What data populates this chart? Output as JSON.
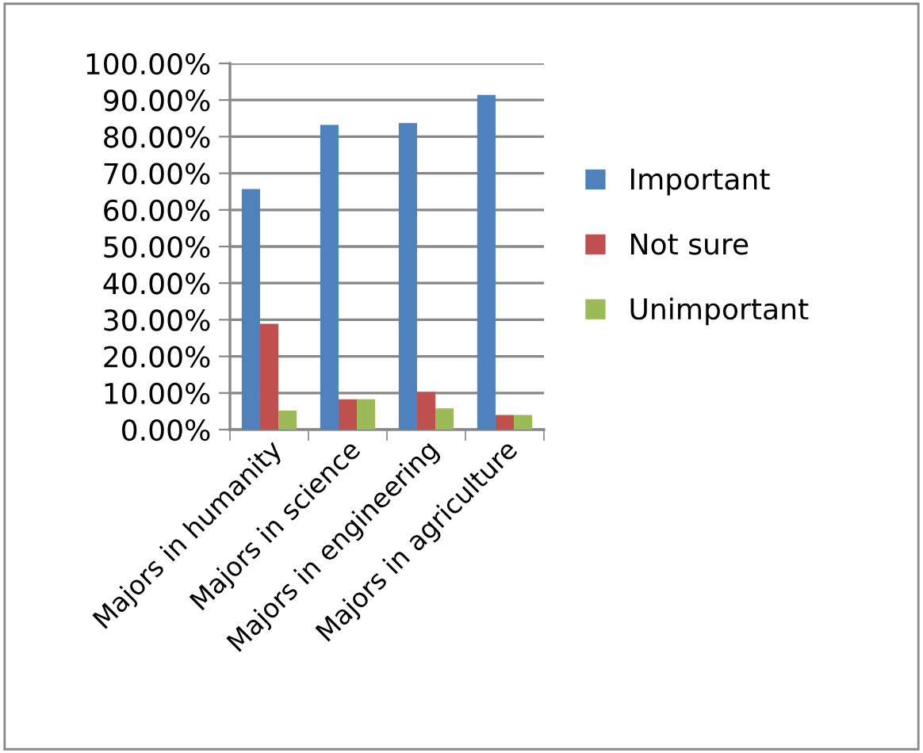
{
  "chart_data": {
    "type": "bar",
    "categories": [
      "Majors in humanity",
      "Majors in science",
      "Majors in engineering",
      "Majors in agriculture"
    ],
    "series": [
      {
        "name": "Important",
        "color": "#4f81bd",
        "values": [
          65.7,
          83.2,
          83.7,
          91.4
        ]
      },
      {
        "name": "Not sure",
        "color": "#c0504d",
        "values": [
          28.9,
          8.3,
          10.3,
          4.0
        ]
      },
      {
        "name": "Unimportant",
        "color": "#9bbb59",
        "values": [
          5.2,
          8.3,
          5.8,
          4.0
        ]
      }
    ],
    "ylim": [
      0,
      100
    ],
    "yticks": [
      {
        "value": 0,
        "label": "0.00%"
      },
      {
        "value": 10,
        "label": "10.00%"
      },
      {
        "value": 20,
        "label": "20.00%"
      },
      {
        "value": 30,
        "label": "30.00%"
      },
      {
        "value": 40,
        "label": "40.00%"
      },
      {
        "value": 50,
        "label": "50.00%"
      },
      {
        "value": 60,
        "label": "60.00%"
      },
      {
        "value": 70,
        "label": "70.00%"
      },
      {
        "value": 80,
        "label": "80.00%"
      },
      {
        "value": 90,
        "label": "90.00%"
      },
      {
        "value": 100,
        "label": "100.00%"
      }
    ],
    "grid": "y",
    "legend": "right"
  }
}
